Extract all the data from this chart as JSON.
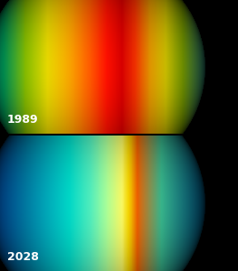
{
  "background_color": "#000000",
  "divider_color": "#d0d0d0",
  "label_1989": "1989",
  "label_2028": "2028",
  "label_color": [
    1.0,
    1.0,
    1.0
  ],
  "label_fontsize": 9,
  "label_fontweight": "bold",
  "figsize": [
    2.63,
    3.0
  ],
  "dpi": 100,
  "globe1_cmap": [
    "#00ccaa",
    "#00ee88",
    "#aaee00",
    "#ffee00",
    "#ffaa00",
    "#ff5500",
    "#ff1100",
    "#dd0000",
    "#ff3300",
    "#ffaa00",
    "#ffee00",
    "#aadd00",
    "#44ccaa"
  ],
  "globe1_stops": [
    0.0,
    0.08,
    0.18,
    0.28,
    0.38,
    0.48,
    0.55,
    0.62,
    0.68,
    0.75,
    0.82,
    0.9,
    1.0
  ],
  "globe2_cmap": [
    "#0055cc",
    "#0077dd",
    "#0099cc",
    "#00bbcc",
    "#00ddcc",
    "#55eebb",
    "#aaff99",
    "#ffff66",
    "#ffdd00",
    "#ffaa00",
    "#ff6600",
    "#44ddaa",
    "#0088cc"
  ],
  "globe2_stops": [
    0.0,
    0.08,
    0.18,
    0.28,
    0.38,
    0.48,
    0.55,
    0.62,
    0.65,
    0.67,
    0.69,
    0.8,
    1.0
  ],
  "img_size": 263
}
